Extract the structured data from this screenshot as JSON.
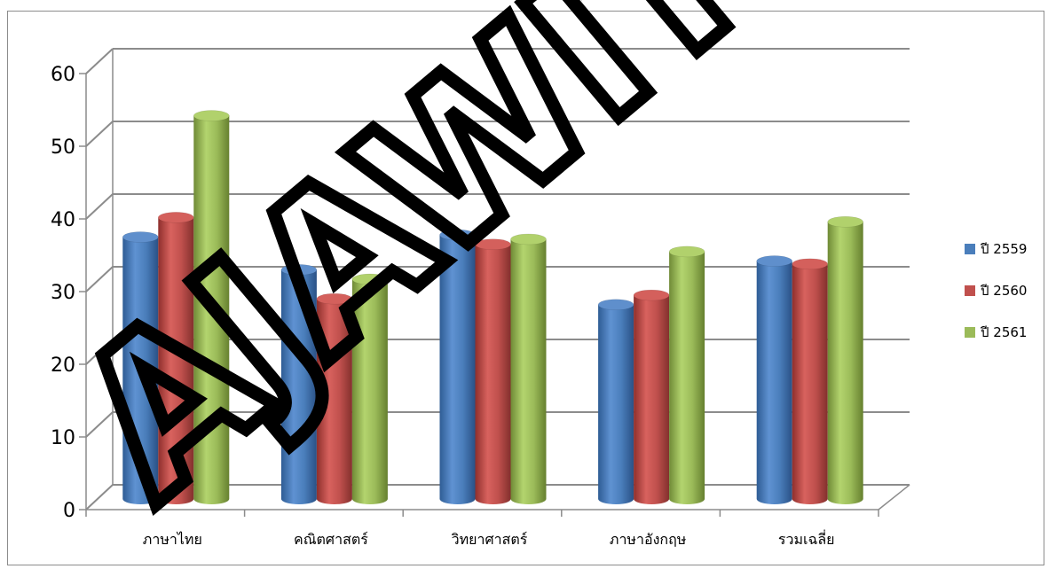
{
  "chart_data": {
    "type": "bar",
    "style": "3d-cylinder",
    "categories": [
      "ภาษาไทย",
      "คณิตศาสตร์",
      "วิทยาศาสตร์",
      "ภาษาอังกฤษ",
      "รวมเฉลี่ย"
    ],
    "series": [
      {
        "name": "ปี 2559",
        "color": "#4a7ebb",
        "values": [
          37.5,
          33.0,
          37.8,
          28.2,
          34.2
        ]
      },
      {
        "name": "ปี 2560",
        "color": "#c0504d",
        "values": [
          40.2,
          29.0,
          36.5,
          29.5,
          33.8
        ]
      },
      {
        "name": "ปี 2561",
        "color": "#9bbb59",
        "values": [
          54.2,
          31.7,
          37.2,
          35.5,
          39.6
        ]
      }
    ],
    "title": "",
    "xlabel": "",
    "ylabel": "",
    "ylim": [
      0,
      60
    ],
    "yticks": [
      "0",
      "10",
      "20",
      "30",
      "40",
      "50",
      "60"
    ],
    "grid": true,
    "legend_position": "right",
    "watermark": "AJAWIT SCI"
  }
}
